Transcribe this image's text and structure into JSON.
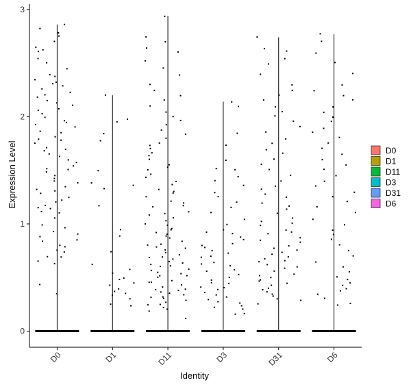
{
  "chart_data": {
    "type": "scatter",
    "subtype": "violin-jitter",
    "xlabel": "Identity",
    "ylabel": "Expression Level",
    "categories": [
      "D0",
      "D1",
      "D11",
      "D3",
      "D31",
      "D6"
    ],
    "ylim": [
      -0.15,
      3.05
    ],
    "yticks": [
      0,
      1,
      2,
      3
    ],
    "grid": false,
    "legend": {
      "position": "right",
      "entries": [
        {
          "name": "D0",
          "color": "#F8766D"
        },
        {
          "name": "D1",
          "color": "#B79F00"
        },
        {
          "name": "D11",
          "color": "#00BA38"
        },
        {
          "name": "D3",
          "color": "#00BFC4"
        },
        {
          "name": "D31",
          "color": "#619CFF"
        },
        {
          "name": "D6",
          "color": "#F564E3"
        }
      ]
    },
    "series": [
      {
        "name": "D0",
        "max": 2.86,
        "zero_fraction": "majority",
        "nonzero_values": [
          0.35,
          0.43,
          0.63,
          0.66,
          0.69,
          0.7,
          0.73,
          0.75,
          0.78,
          0.8,
          0.83,
          0.86,
          0.88,
          0.9,
          0.93,
          0.96,
          1.0,
          1.05,
          1.1,
          1.12,
          1.14,
          1.16,
          1.18,
          1.2,
          1.22,
          1.25,
          1.28,
          1.3,
          1.32,
          1.35,
          1.38,
          1.4,
          1.43,
          1.45,
          1.48,
          1.5,
          1.52,
          1.55,
          1.58,
          1.6,
          1.62,
          1.65,
          1.68,
          1.7,
          1.72,
          1.75,
          1.78,
          1.8,
          1.82,
          1.85,
          1.87,
          1.9,
          1.92,
          1.95,
          1.97,
          2.0,
          2.02,
          2.05,
          2.08,
          2.1,
          2.12,
          2.15,
          2.18,
          2.2,
          2.22,
          2.25,
          2.28,
          2.3,
          2.32,
          2.35,
          2.38,
          2.4,
          2.45,
          2.5,
          2.55,
          2.6,
          2.62,
          2.65,
          2.7,
          2.76,
          2.78,
          2.83,
          2.86
        ]
      },
      {
        "name": "D1",
        "max": 2.2,
        "zero_fraction": "majority",
        "nonzero_values": [
          0.24,
          0.26,
          0.3,
          0.34,
          0.36,
          0.38,
          0.4,
          0.42,
          0.45,
          0.48,
          0.5,
          0.54,
          0.58,
          0.62,
          0.75,
          0.88,
          0.94,
          1.17,
          1.32,
          1.36,
          1.38,
          1.5,
          1.78,
          1.85,
          1.95,
          1.97,
          2.2
        ]
      },
      {
        "name": "D11",
        "max": 2.94,
        "zero_fraction": "majority",
        "nonzero_values": [
          0.12,
          0.18,
          0.2,
          0.22,
          0.24,
          0.25,
          0.27,
          0.28,
          0.3,
          0.31,
          0.32,
          0.33,
          0.35,
          0.36,
          0.38,
          0.39,
          0.4,
          0.42,
          0.43,
          0.45,
          0.46,
          0.48,
          0.5,
          0.51,
          0.52,
          0.54,
          0.55,
          0.57,
          0.58,
          0.6,
          0.61,
          0.62,
          0.64,
          0.65,
          0.67,
          0.68,
          0.7,
          0.72,
          0.74,
          0.75,
          0.77,
          0.78,
          0.8,
          0.82,
          0.84,
          0.86,
          0.88,
          0.9,
          0.92,
          0.94,
          0.96,
          0.98,
          1.0,
          1.02,
          1.05,
          1.08,
          1.1,
          1.12,
          1.15,
          1.18,
          1.2,
          1.22,
          1.25,
          1.28,
          1.3,
          1.33,
          1.36,
          1.4,
          1.43,
          1.46,
          1.5,
          1.53,
          1.56,
          1.6,
          1.63,
          1.66,
          1.7,
          1.73,
          1.76,
          1.8,
          1.84,
          1.88,
          1.92,
          1.96,
          2.0,
          2.05,
          2.1,
          2.15,
          2.2,
          2.25,
          2.3,
          2.38,
          2.45,
          2.52,
          2.6,
          2.64,
          2.7,
          2.75,
          2.94
        ]
      },
      {
        "name": "D3",
        "max": 2.14,
        "zero_fraction": "majority",
        "nonzero_values": [
          0.15,
          0.17,
          0.2,
          0.22,
          0.24,
          0.26,
          0.28,
          0.3,
          0.32,
          0.34,
          0.36,
          0.38,
          0.4,
          0.42,
          0.44,
          0.46,
          0.48,
          0.5,
          0.52,
          0.55,
          0.58,
          0.6,
          0.62,
          0.65,
          0.68,
          0.7,
          0.72,
          0.75,
          0.78,
          0.8,
          0.82,
          0.85,
          0.88,
          0.9,
          0.92,
          0.95,
          1.0,
          1.05,
          1.1,
          1.15,
          1.2,
          1.25,
          1.3,
          1.35,
          1.4,
          1.45,
          1.5,
          1.52,
          1.6,
          1.73,
          1.85,
          2.1,
          2.14
        ]
      },
      {
        "name": "D31",
        "max": 2.74,
        "zero_fraction": "majority",
        "nonzero_values": [
          0.26,
          0.28,
          0.3,
          0.32,
          0.34,
          0.36,
          0.38,
          0.4,
          0.42,
          0.44,
          0.46,
          0.48,
          0.5,
          0.52,
          0.54,
          0.56,
          0.58,
          0.6,
          0.62,
          0.64,
          0.66,
          0.68,
          0.7,
          0.72,
          0.74,
          0.76,
          0.78,
          0.8,
          0.82,
          0.85,
          0.88,
          0.9,
          0.92,
          0.95,
          0.98,
          1.0,
          1.03,
          1.06,
          1.1,
          1.13,
          1.16,
          1.2,
          1.24,
          1.28,
          1.32,
          1.36,
          1.4,
          1.45,
          1.5,
          1.55,
          1.6,
          1.65,
          1.7,
          1.75,
          1.8,
          1.85,
          1.9,
          1.95,
          2.0,
          2.05,
          2.1,
          2.15,
          2.2,
          2.25,
          2.3,
          2.4,
          2.5,
          2.55,
          2.62,
          2.64,
          2.74
        ]
      },
      {
        "name": "D6",
        "max": 2.77,
        "zero_fraction": "majority",
        "nonzero_values": [
          0.24,
          0.26,
          0.3,
          0.34,
          0.38,
          0.4,
          0.42,
          0.45,
          0.48,
          0.5,
          0.55,
          0.6,
          0.65,
          0.7,
          0.75,
          0.8,
          0.85,
          0.9,
          0.95,
          1.0,
          1.05,
          1.1,
          1.15,
          1.2,
          1.25,
          1.3,
          1.35,
          1.4,
          1.45,
          1.5,
          1.55,
          1.6,
          1.65,
          1.7,
          1.75,
          1.8,
          1.85,
          1.9,
          1.95,
          2.0,
          2.05,
          2.1,
          2.15,
          2.2,
          2.25,
          2.3,
          2.4,
          2.5,
          2.6,
          2.7,
          2.77
        ]
      }
    ]
  }
}
